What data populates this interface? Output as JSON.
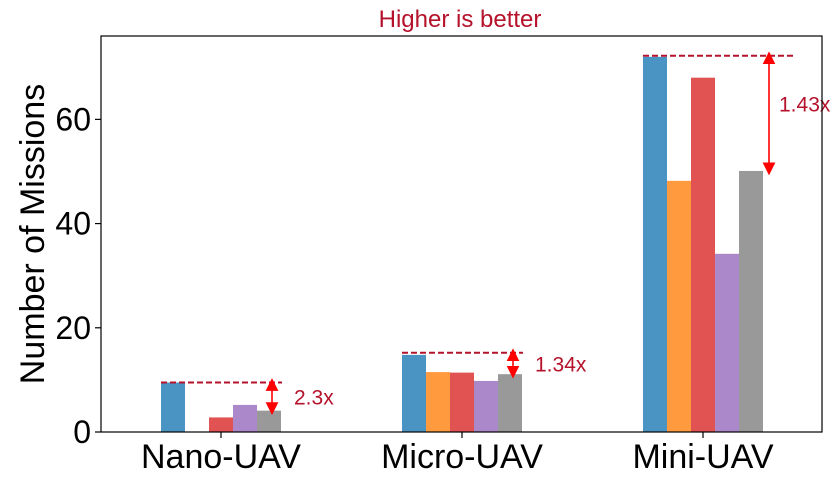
{
  "chart_data": {
    "type": "bar",
    "title": "Higher is better",
    "xlabel": "",
    "ylabel": "Number of Missions",
    "ylim": [
      0,
      76
    ],
    "yticks": [
      0,
      20,
      40,
      60
    ],
    "categories": [
      "Nano-UAV",
      "Micro-UAV",
      "Mini-UAV"
    ],
    "series": [
      {
        "color": "#4a94c4",
        "values": [
          9.5,
          14.8,
          72
        ]
      },
      {
        "color": "#ff9b3e",
        "values": [
          0,
          11.5,
          48.2
        ]
      },
      {
        "color": "#e05352",
        "values": [
          2.8,
          11.4,
          68
        ]
      },
      {
        "color": "#ab88c9",
        "values": [
          5.2,
          9.8,
          34.2
        ]
      },
      {
        "color": "#999999",
        "values": [
          4.1,
          11.1,
          50.1
        ]
      }
    ],
    "annotations": [
      {
        "category": "Nano-UAV",
        "label": "2.3x",
        "from": 4.1,
        "to": 9.5
      },
      {
        "category": "Micro-UAV",
        "label": "1.34x",
        "from": 11.1,
        "to": 15.2
      },
      {
        "category": "Mini-UAV",
        "label": "1.43x",
        "from": 50.1,
        "to": 72.2
      }
    ],
    "annotation_color": "#b5122b",
    "arrow_color": "#ff0000",
    "grid": false,
    "legend": "none"
  }
}
